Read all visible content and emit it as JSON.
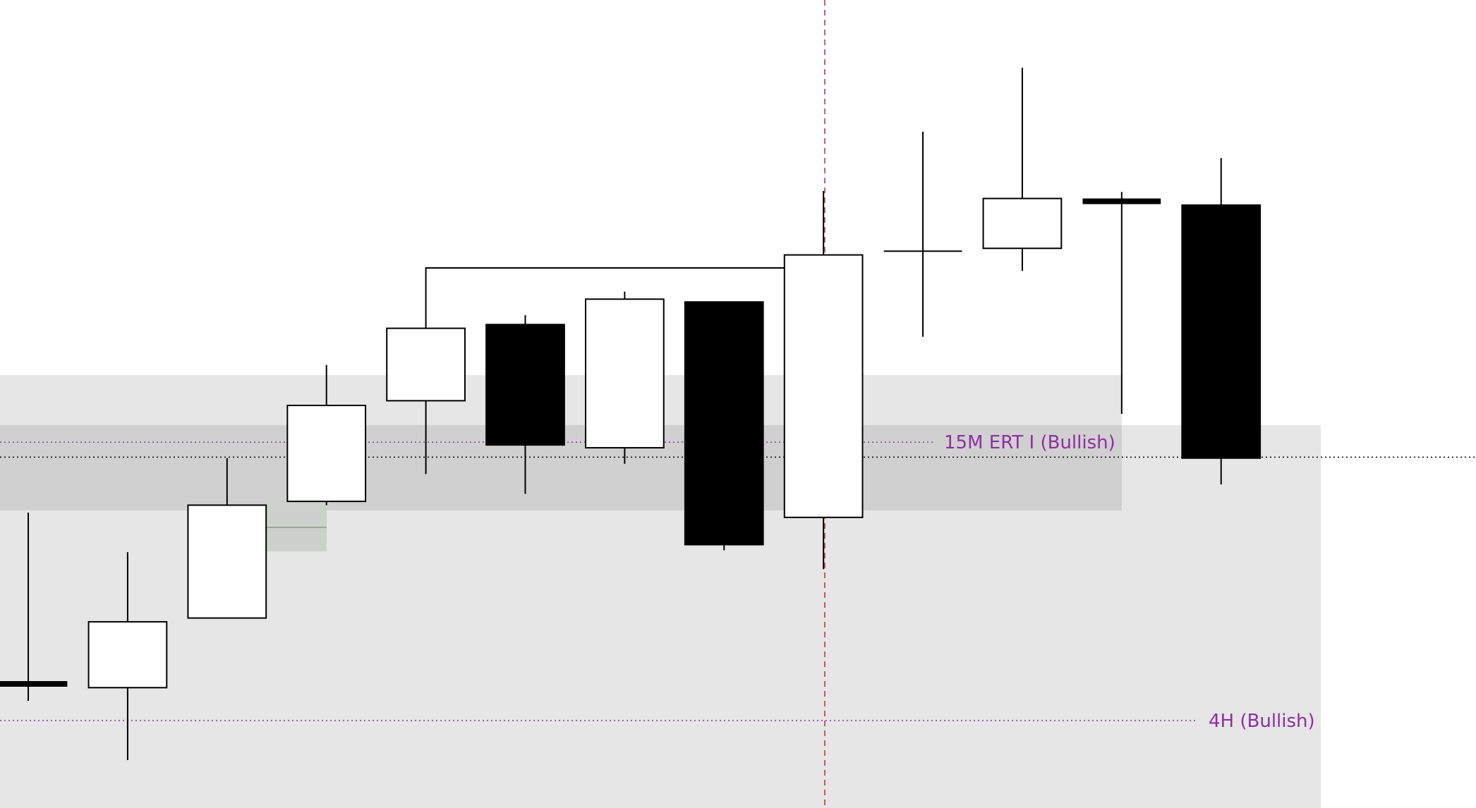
{
  "chart_data": {
    "type": "candlestick",
    "title": "",
    "xlabel": "",
    "ylabel": "",
    "price_units": "relative (no axis printed)",
    "candles": [
      {
        "open": 133,
        "high": 315,
        "low": 115,
        "close": 133
      },
      {
        "open": 129,
        "high": 273,
        "low": 52,
        "close": 199
      },
      {
        "open": 203,
        "high": 373,
        "low": 203,
        "close": 323
      },
      {
        "open": 327,
        "high": 472,
        "low": 323,
        "close": 429
      },
      {
        "open": 434,
        "high": 511,
        "low": 356,
        "close": 511
      },
      {
        "open": 515,
        "high": 525,
        "low": 335,
        "close": 387
      },
      {
        "open": 384,
        "high": 550,
        "low": 367,
        "close": 542
      },
      {
        "open": 539,
        "high": 539,
        "low": 275,
        "close": 281
      },
      {
        "open": 310,
        "high": 657,
        "low": 255,
        "close": 589
      },
      {
        "open": 593,
        "high": 720,
        "low": 502,
        "close": 593
      },
      {
        "open": 596,
        "high": 788,
        "low": 572,
        "close": 649
      },
      {
        "open": 646,
        "high": 656,
        "low": 420,
        "close": 646
      },
      {
        "open": 642,
        "high": 692,
        "low": 345,
        "close": 373
      }
    ],
    "zones": [
      {
        "label": "15M ERT I (Bullish)",
        "level": 390,
        "color": "#8e2fa3"
      },
      {
        "label": "4H (Bullish)",
        "level": 94,
        "color": "#8e2fa3"
      }
    ],
    "reference_level": 374,
    "colors": {
      "bull": "#ffffff",
      "bear": "#000000",
      "zone_light": "#e6e6e6",
      "zone_dark": "#d0d0d0",
      "gap_box": "#ccd1cc",
      "marker": "#b03030",
      "label": "#8e2fa3"
    },
    "grid": false
  }
}
